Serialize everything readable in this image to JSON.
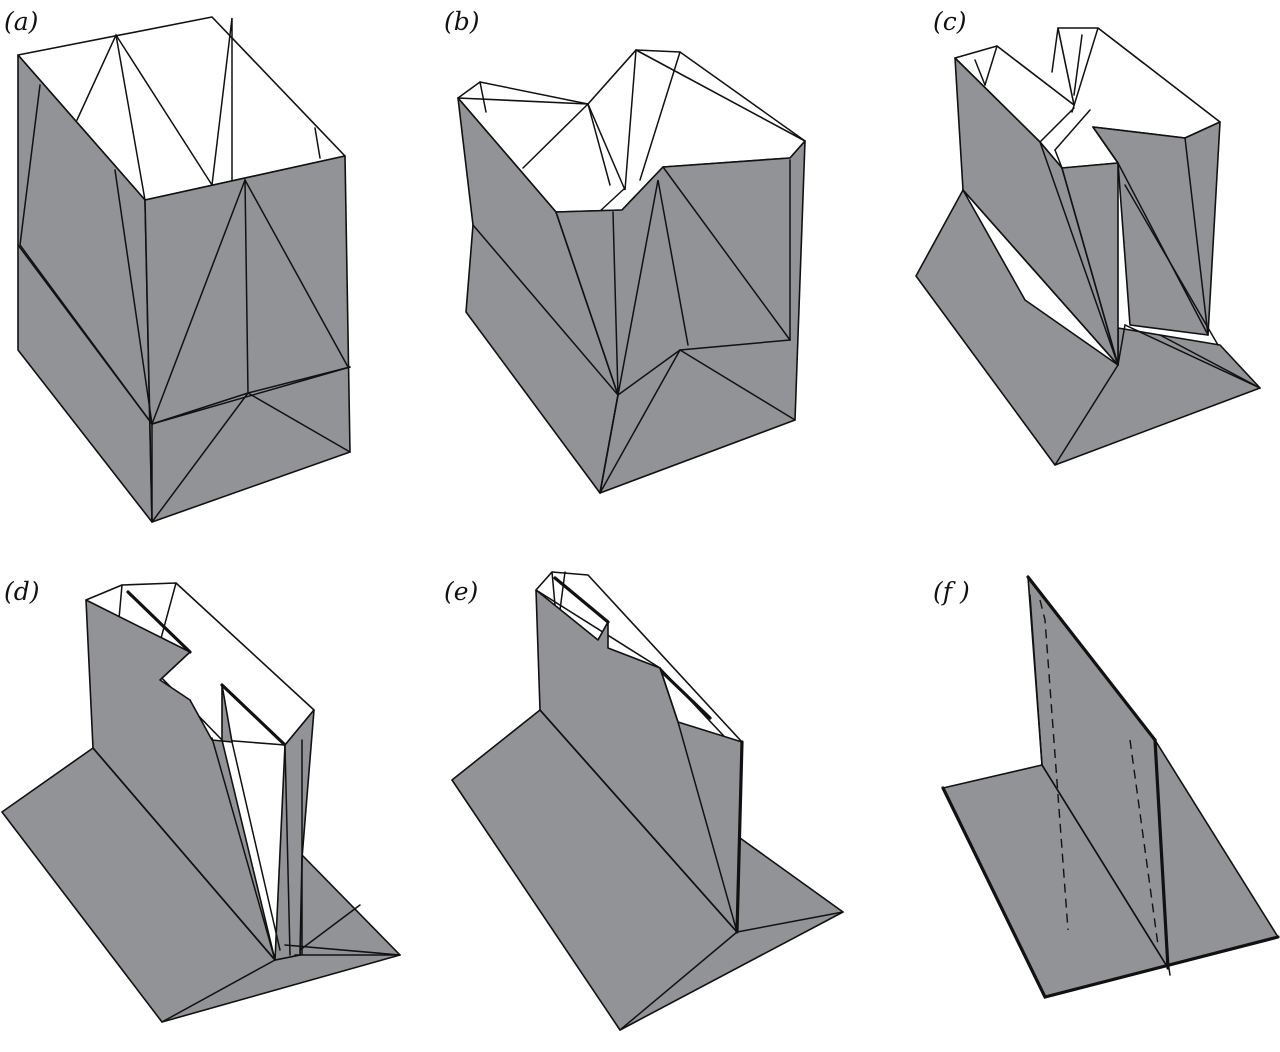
{
  "panels": [
    {
      "id": "a",
      "label": "(a)"
    },
    {
      "id": "b",
      "label": "(b)"
    },
    {
      "id": "c",
      "label": "(c)"
    },
    {
      "id": "d",
      "label": "(d)"
    },
    {
      "id": "e",
      "label": "(e)"
    },
    {
      "id": "f",
      "label": "(f )"
    }
  ],
  "colors": {
    "face": "#929397",
    "interior": "#ffffff",
    "line": "#111111"
  }
}
